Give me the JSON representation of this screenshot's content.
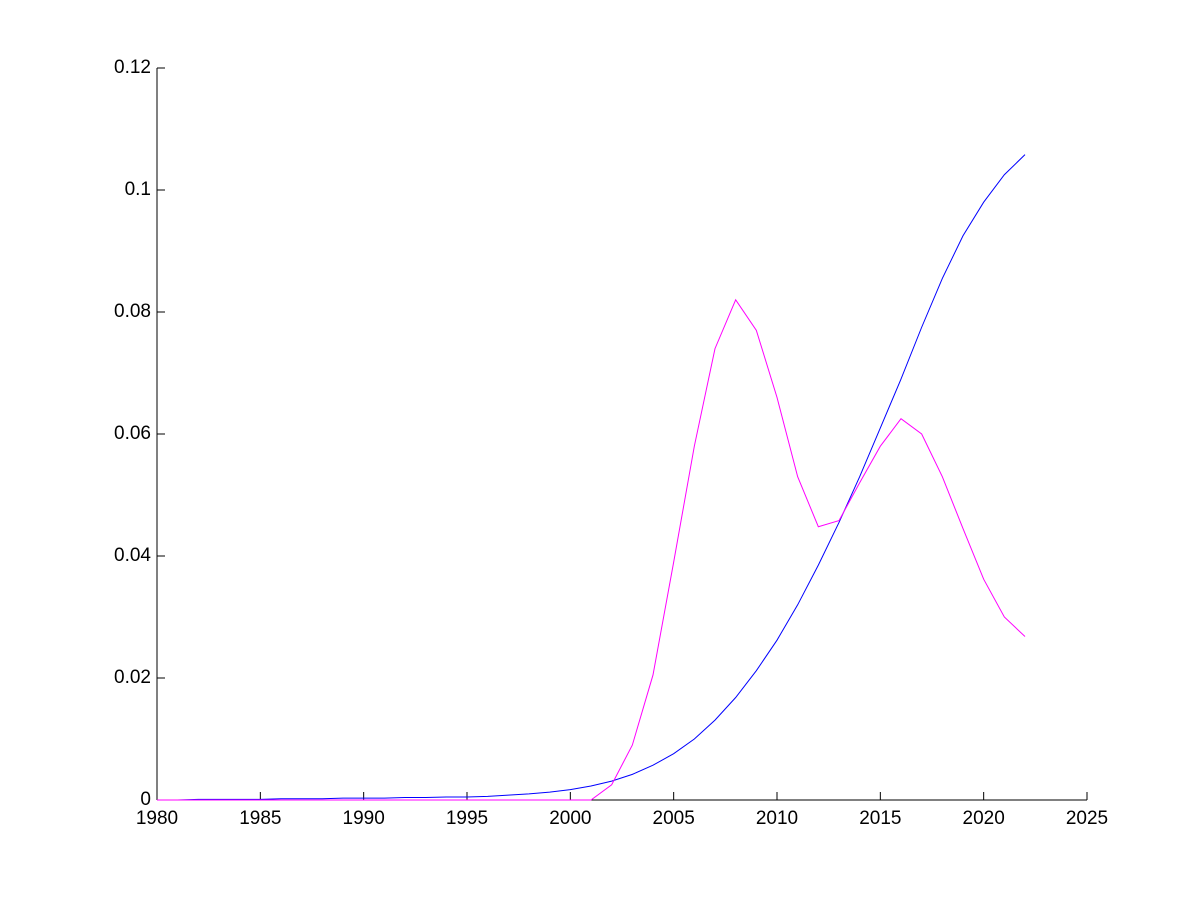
{
  "chart_data": {
    "type": "line",
    "x": [
      1980,
      1981,
      1982,
      1983,
      1984,
      1985,
      1986,
      1987,
      1988,
      1989,
      1990,
      1991,
      1992,
      1993,
      1994,
      1995,
      1996,
      1997,
      1998,
      1999,
      2000,
      2001,
      2002,
      2003,
      2004,
      2005,
      2006,
      2007,
      2008,
      2009,
      2010,
      2011,
      2012,
      2013,
      2014,
      2015,
      2016,
      2017,
      2018,
      2019,
      2020,
      2021,
      2022
    ],
    "series": [
      {
        "color": "#0000ff",
        "values": [
          0,
          0,
          0.0001,
          0.0001,
          0.0001,
          0.0001,
          0.0002,
          0.0002,
          0.0002,
          0.0003,
          0.0003,
          0.0003,
          0.0004,
          0.0004,
          0.0005,
          0.0005,
          0.0006,
          0.0008,
          0.001,
          0.0013,
          0.0017,
          0.0023,
          0.0031,
          0.0042,
          0.0057,
          0.0076,
          0.01,
          0.0131,
          0.0168,
          0.0212,
          0.0262,
          0.032,
          0.0385,
          0.0455,
          0.053,
          0.061,
          0.069,
          0.0775,
          0.0855,
          0.0925,
          0.098,
          0.1025,
          0.1058
        ]
      },
      {
        "color": "#ff00ff",
        "values": [
          0,
          0,
          0,
          0,
          0,
          0,
          0,
          0,
          0,
          0,
          0,
          0,
          0,
          0,
          0,
          0,
          0,
          0,
          0,
          0,
          0,
          0,
          0.0025,
          0.009,
          0.0205,
          0.039,
          0.058,
          0.074,
          0.082,
          0.077,
          0.066,
          0.053,
          0.0448,
          0.0458,
          0.052,
          0.058,
          0.0625,
          0.06,
          0.053,
          0.0445,
          0.0362,
          0.03,
          0.0268
        ]
      }
    ],
    "xlim": [
      1980,
      2025
    ],
    "xticks": [
      1980,
      1985,
      1990,
      1995,
      2000,
      2005,
      2010,
      2015,
      2020,
      2025
    ],
    "ylim": [
      0,
      0.12
    ],
    "yticks": [
      0,
      0.02,
      0.04,
      0.06,
      0.08,
      0.1,
      0.12
    ]
  }
}
